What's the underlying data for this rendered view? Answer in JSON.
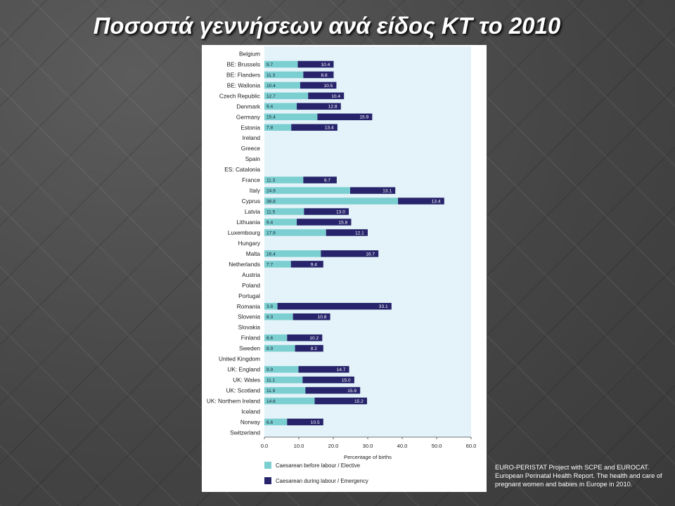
{
  "slide": {
    "title": "Ποσοστά γεννήσεων ανά είδος ΚΤ το 2010",
    "source": "EURO-PERISTAT Project with SCPE and EUROCAT. European Perinatal Health Report. The health and care of pregnant women and babies in Europe in 2010."
  },
  "colors": {
    "elective": "#7ccfd0",
    "emergency": "#27246b",
    "plot_background": "#e3f3f9"
  },
  "chart_data": {
    "type": "bar",
    "orientation": "horizontal",
    "stacked": true,
    "xlabel": "Percentage of births",
    "xlim": [
      0,
      60
    ],
    "xticks": [
      "0.0",
      "10.0",
      "20.0",
      "30.0",
      "40.0",
      "50.0",
      "60.0"
    ],
    "legend_position": "bottom",
    "categories": [
      "Belgium",
      "BE: Brussels",
      "BE: Flanders",
      "BE: Wallonia",
      "Czech Republic",
      "Denmark",
      "Germany",
      "Estonia",
      "Ireland",
      "Greece",
      "Spain",
      "ES: Catalonia",
      "France",
      "Italy",
      "Cyprus",
      "Latvia",
      "Lithuania",
      "Luxembourg",
      "Hungary",
      "Malta",
      "Netherlands",
      "Austria",
      "Poland",
      "Portugal",
      "Romania",
      "Slovenia",
      "Slovakia",
      "Finland",
      "Sweden",
      "United Kingdom",
      "UK: England",
      "UK: Wales",
      "UK: Scotland",
      "UK: Northern Ireland",
      "Iceland",
      "Norway",
      "Switzerland"
    ],
    "series": [
      {
        "name": "Caesarean before labour / Elective",
        "values": [
          null,
          9.7,
          11.3,
          10.4,
          12.7,
          9.4,
          15.4,
          7.8,
          null,
          null,
          null,
          null,
          11.3,
          24.9,
          38.8,
          11.5,
          9.4,
          17.9,
          null,
          16.4,
          7.7,
          null,
          null,
          null,
          3.8,
          8.3,
          null,
          6.6,
          8.9,
          null,
          9.9,
          11.1,
          11.9,
          14.6,
          null,
          6.6,
          null
        ],
        "labels": [
          null,
          "9.7",
          "11.3",
          "10.4",
          "12.7",
          "9.4",
          "15.4",
          "7.8",
          null,
          null,
          null,
          null,
          "11.3",
          "24.9",
          "38.8",
          "11.5",
          "9.4",
          "17.9",
          null,
          "16.4",
          "7.7",
          null,
          null,
          null,
          "3.8",
          "8.3",
          null,
          "6.6",
          "8.9",
          null,
          "9.9",
          "11.1",
          "11.9",
          "14.6",
          null,
          "6.6",
          null
        ]
      },
      {
        "name": "Caesarean during labour / Emergency",
        "values": [
          null,
          10.4,
          8.8,
          10.5,
          10.4,
          12.8,
          15.9,
          13.4,
          null,
          null,
          null,
          null,
          9.7,
          13.1,
          13.4,
          13.0,
          15.8,
          12.1,
          null,
          16.7,
          9.4,
          null,
          null,
          null,
          33.1,
          10.8,
          null,
          10.2,
          8.2,
          null,
          14.7,
          15.0,
          15.9,
          15.2,
          null,
          10.5,
          null
        ],
        "labels": [
          null,
          "10.4",
          "8.8",
          "10.5",
          "10.4",
          "12.8",
          "15.9",
          "13.4",
          null,
          null,
          null,
          null,
          "9.7",
          "13.1",
          "13.4",
          "13.0",
          "15.8",
          "12.1",
          null,
          "16.7",
          "9.4",
          null,
          null,
          null,
          "33.1",
          "10.8",
          null,
          "10.2",
          "8.2",
          null,
          "14.7",
          "15.0",
          "15.9",
          "15.2",
          null,
          "10.5",
          null
        ]
      }
    ]
  }
}
